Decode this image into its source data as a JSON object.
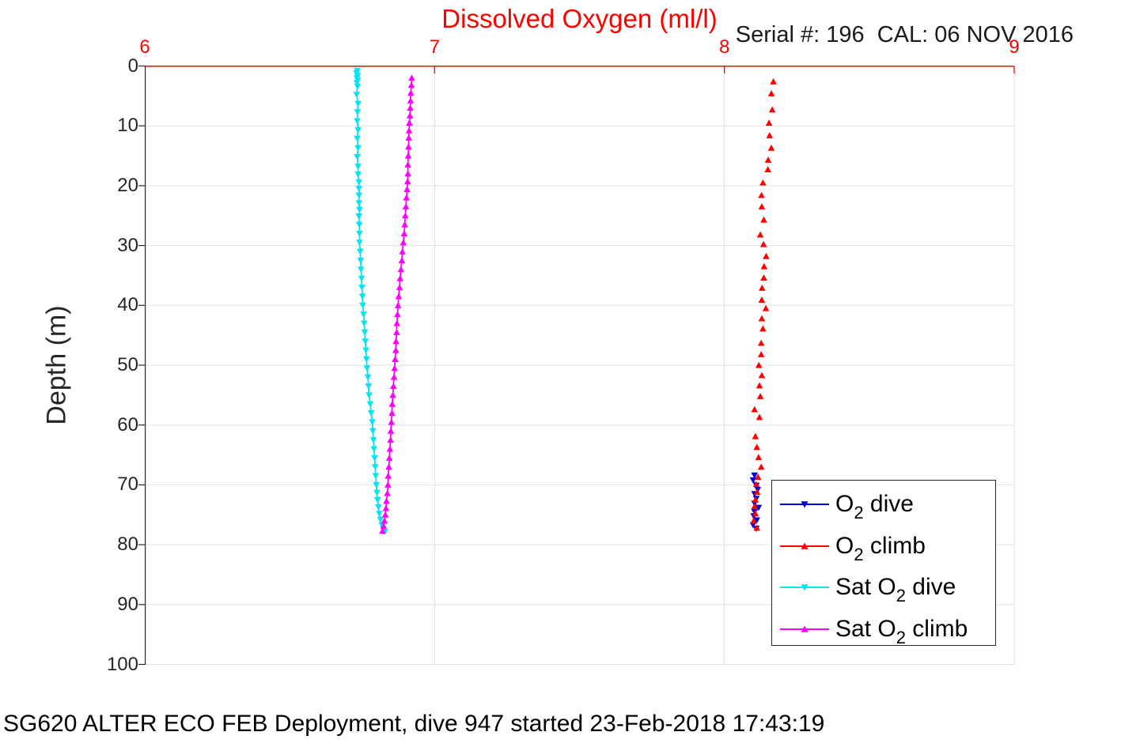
{
  "header": {
    "title": "Dissolved Oxygen (ml/l)",
    "serial_label": "Serial #: 196  CAL: 06 NOV 2016"
  },
  "caption": "SG620 ALTER ECO FEB Deployment, dive 947 started 23-Feb-2018 17:43:19",
  "chart_data": {
    "type": "scatter",
    "title": "Dissolved Oxygen (ml/l)",
    "xlabel": "",
    "ylabel": "Depth (m)",
    "xlim": [
      6,
      9
    ],
    "ylim": [
      0,
      100
    ],
    "y_axis_reversed": true,
    "x_axis_position": "top",
    "x_ticks": [
      6,
      7,
      8,
      9
    ],
    "y_ticks": [
      0,
      10,
      20,
      30,
      40,
      50,
      60,
      70,
      80,
      90,
      100
    ],
    "grid": true,
    "colors": {
      "x_axis": "#ff0000",
      "y_axis": "#262626",
      "x_grid": "#f6d6d6",
      "y_grid": "#e2e2e2"
    },
    "legend_position": "lower right",
    "series": [
      {
        "id": "o2-dive",
        "name_pre": "O",
        "name_sub": "2",
        "name_post": " dive",
        "color": "#0000d8",
        "marker": "v",
        "line": true,
        "points": [
          [
            8.104,
            68.4
          ],
          [
            8.099,
            69.2
          ],
          [
            8.11,
            70.1
          ],
          [
            8.115,
            70.8
          ],
          [
            8.104,
            71.5
          ],
          [
            8.11,
            72.3
          ],
          [
            8.104,
            73.1
          ],
          [
            8.118,
            73.8
          ],
          [
            8.104,
            74.5
          ],
          [
            8.101,
            75.2
          ],
          [
            8.112,
            75.9
          ],
          [
            8.099,
            76.7
          ],
          [
            8.11,
            77.3
          ]
        ]
      },
      {
        "id": "o2-climb",
        "name_pre": "O",
        "name_sub": "2",
        "name_post": " climb",
        "color": "#ff0000",
        "marker": "^",
        "line": false,
        "points": [
          [
            8.169,
            2.6
          ],
          [
            8.162,
            4.6
          ],
          [
            8.165,
            7.3
          ],
          [
            8.154,
            9.5
          ],
          [
            8.156,
            11.6
          ],
          [
            8.162,
            13.7
          ],
          [
            8.151,
            15.7
          ],
          [
            8.15,
            17.3
          ],
          [
            8.133,
            19.5
          ],
          [
            8.128,
            21.6
          ],
          [
            8.129,
            23.5
          ],
          [
            8.136,
            25.7
          ],
          [
            8.124,
            28.2
          ],
          [
            8.135,
            29.8
          ],
          [
            8.144,
            31.8
          ],
          [
            8.137,
            33.5
          ],
          [
            8.136,
            35.4
          ],
          [
            8.13,
            37.1
          ],
          [
            8.129,
            39.1
          ],
          [
            8.143,
            40.5
          ],
          [
            8.129,
            42.2
          ],
          [
            8.133,
            43.9
          ],
          [
            8.127,
            46.3
          ],
          [
            8.127,
            48.2
          ],
          [
            8.119,
            50.0
          ],
          [
            8.129,
            51.7
          ],
          [
            8.121,
            53.4
          ],
          [
            8.124,
            55.2
          ],
          [
            8.104,
            57.4
          ],
          [
            8.121,
            58.7
          ],
          [
            8.107,
            61.9
          ],
          [
            8.112,
            63.7
          ],
          [
            8.118,
            65.4
          ],
          [
            8.127,
            67.0
          ],
          [
            8.116,
            68.7
          ],
          [
            8.11,
            69.9
          ],
          [
            8.113,
            71.2
          ],
          [
            8.107,
            72.5
          ],
          [
            8.104,
            73.6
          ],
          [
            8.107,
            74.8
          ],
          [
            8.101,
            76.0
          ],
          [
            8.112,
            77.2
          ]
        ]
      },
      {
        "id": "sat-o2-dive",
        "name_pre": "Sat O",
        "name_sub": "2",
        "name_post": " dive",
        "color": "#00e4f4",
        "marker": "v",
        "line": true,
        "points": [
          [
            6.733,
            0.8
          ],
          [
            6.731,
            1.2
          ],
          [
            6.734,
            1.6
          ],
          [
            6.732,
            2.0
          ],
          [
            6.735,
            2.4
          ],
          [
            6.732,
            2.8
          ],
          [
            6.734,
            3.4
          ],
          [
            6.731,
            4.8
          ],
          [
            6.736,
            6.3
          ],
          [
            6.734,
            7.7
          ],
          [
            6.733,
            9.2
          ],
          [
            6.736,
            10.7
          ],
          [
            6.733,
            12.1
          ],
          [
            6.736,
            13.7
          ],
          [
            6.733,
            15.2
          ],
          [
            6.736,
            16.8
          ],
          [
            6.736,
            18.1
          ],
          [
            6.739,
            19.4
          ],
          [
            6.739,
            20.5
          ],
          [
            6.739,
            21.6
          ],
          [
            6.739,
            22.9
          ],
          [
            6.741,
            24.0
          ],
          [
            6.739,
            25.1
          ],
          [
            6.74,
            26.5
          ],
          [
            6.741,
            28.0
          ],
          [
            6.741,
            29.5
          ],
          [
            6.743,
            31.0
          ],
          [
            6.745,
            32.5
          ],
          [
            6.746,
            34.0
          ],
          [
            6.748,
            35.5
          ],
          [
            6.749,
            37.0
          ],
          [
            6.751,
            38.5
          ],
          [
            6.752,
            40.0
          ],
          [
            6.755,
            41.5
          ],
          [
            6.757,
            43.0
          ],
          [
            6.759,
            44.5
          ],
          [
            6.761,
            46.0
          ],
          [
            6.763,
            47.5
          ],
          [
            6.765,
            49.0
          ],
          [
            6.767,
            50.5
          ],
          [
            6.77,
            52.0
          ],
          [
            6.772,
            53.5
          ],
          [
            6.774,
            55.0
          ],
          [
            6.778,
            56.5
          ],
          [
            6.781,
            58.0
          ],
          [
            6.785,
            59.5
          ],
          [
            6.787,
            61.0
          ],
          [
            6.789,
            62.5
          ],
          [
            6.791,
            64.0
          ],
          [
            6.793,
            65.5
          ],
          [
            6.795,
            67.0
          ],
          [
            6.797,
            68.5
          ],
          [
            6.799,
            70.0
          ],
          [
            6.801,
            71.3
          ],
          [
            6.803,
            72.5
          ],
          [
            6.806,
            73.7
          ],
          [
            6.809,
            74.8
          ],
          [
            6.813,
            75.8
          ],
          [
            6.818,
            76.7
          ],
          [
            6.823,
            77.4
          ],
          [
            6.829,
            77.8
          ]
        ]
      },
      {
        "id": "sat-o2-climb",
        "name_pre": "Sat O",
        "name_sub": "2",
        "name_post": " climb",
        "color": "#ff00ff",
        "marker": "^",
        "line": true,
        "points": [
          [
            6.921,
            2.0
          ],
          [
            6.92,
            3.2
          ],
          [
            6.918,
            4.5
          ],
          [
            6.917,
            5.8
          ],
          [
            6.916,
            7.0
          ],
          [
            6.915,
            8.3
          ],
          [
            6.913,
            9.5
          ],
          [
            6.912,
            10.8
          ],
          [
            6.911,
            12.0
          ],
          [
            6.91,
            13.5
          ],
          [
            6.909,
            15.0
          ],
          [
            6.908,
            16.5
          ],
          [
            6.908,
            18.0
          ],
          [
            6.907,
            19.3
          ],
          [
            6.905,
            20.6
          ],
          [
            6.903,
            22.0
          ],
          [
            6.901,
            23.5
          ],
          [
            6.899,
            25.0
          ],
          [
            6.897,
            26.5
          ],
          [
            6.895,
            28.0
          ],
          [
            6.892,
            29.5
          ],
          [
            6.889,
            31.0
          ],
          [
            6.887,
            32.5
          ],
          [
            6.884,
            34.0
          ],
          [
            6.881,
            35.5
          ],
          [
            6.879,
            37.0
          ],
          [
            6.876,
            38.5
          ],
          [
            6.874,
            40.0
          ],
          [
            6.872,
            41.5
          ],
          [
            6.87,
            43.0
          ],
          [
            6.869,
            44.5
          ],
          [
            6.867,
            46.0
          ],
          [
            6.866,
            47.5
          ],
          [
            6.864,
            49.0
          ],
          [
            6.862,
            50.5
          ],
          [
            6.86,
            52.0
          ],
          [
            6.858,
            53.5
          ],
          [
            6.856,
            55.0
          ],
          [
            6.854,
            56.5
          ],
          [
            6.853,
            58.0
          ],
          [
            6.851,
            59.5
          ],
          [
            6.849,
            61.0
          ],
          [
            6.848,
            62.5
          ],
          [
            6.846,
            64.0
          ],
          [
            6.844,
            65.5
          ],
          [
            6.842,
            67.0
          ],
          [
            6.84,
            68.5
          ],
          [
            6.839,
            70.0
          ],
          [
            6.837,
            71.4
          ],
          [
            6.834,
            72.7
          ],
          [
            6.832,
            73.9
          ],
          [
            6.83,
            75.0
          ],
          [
            6.827,
            76.0
          ],
          [
            6.824,
            76.9
          ],
          [
            6.82,
            77.7
          ]
        ]
      }
    ]
  }
}
